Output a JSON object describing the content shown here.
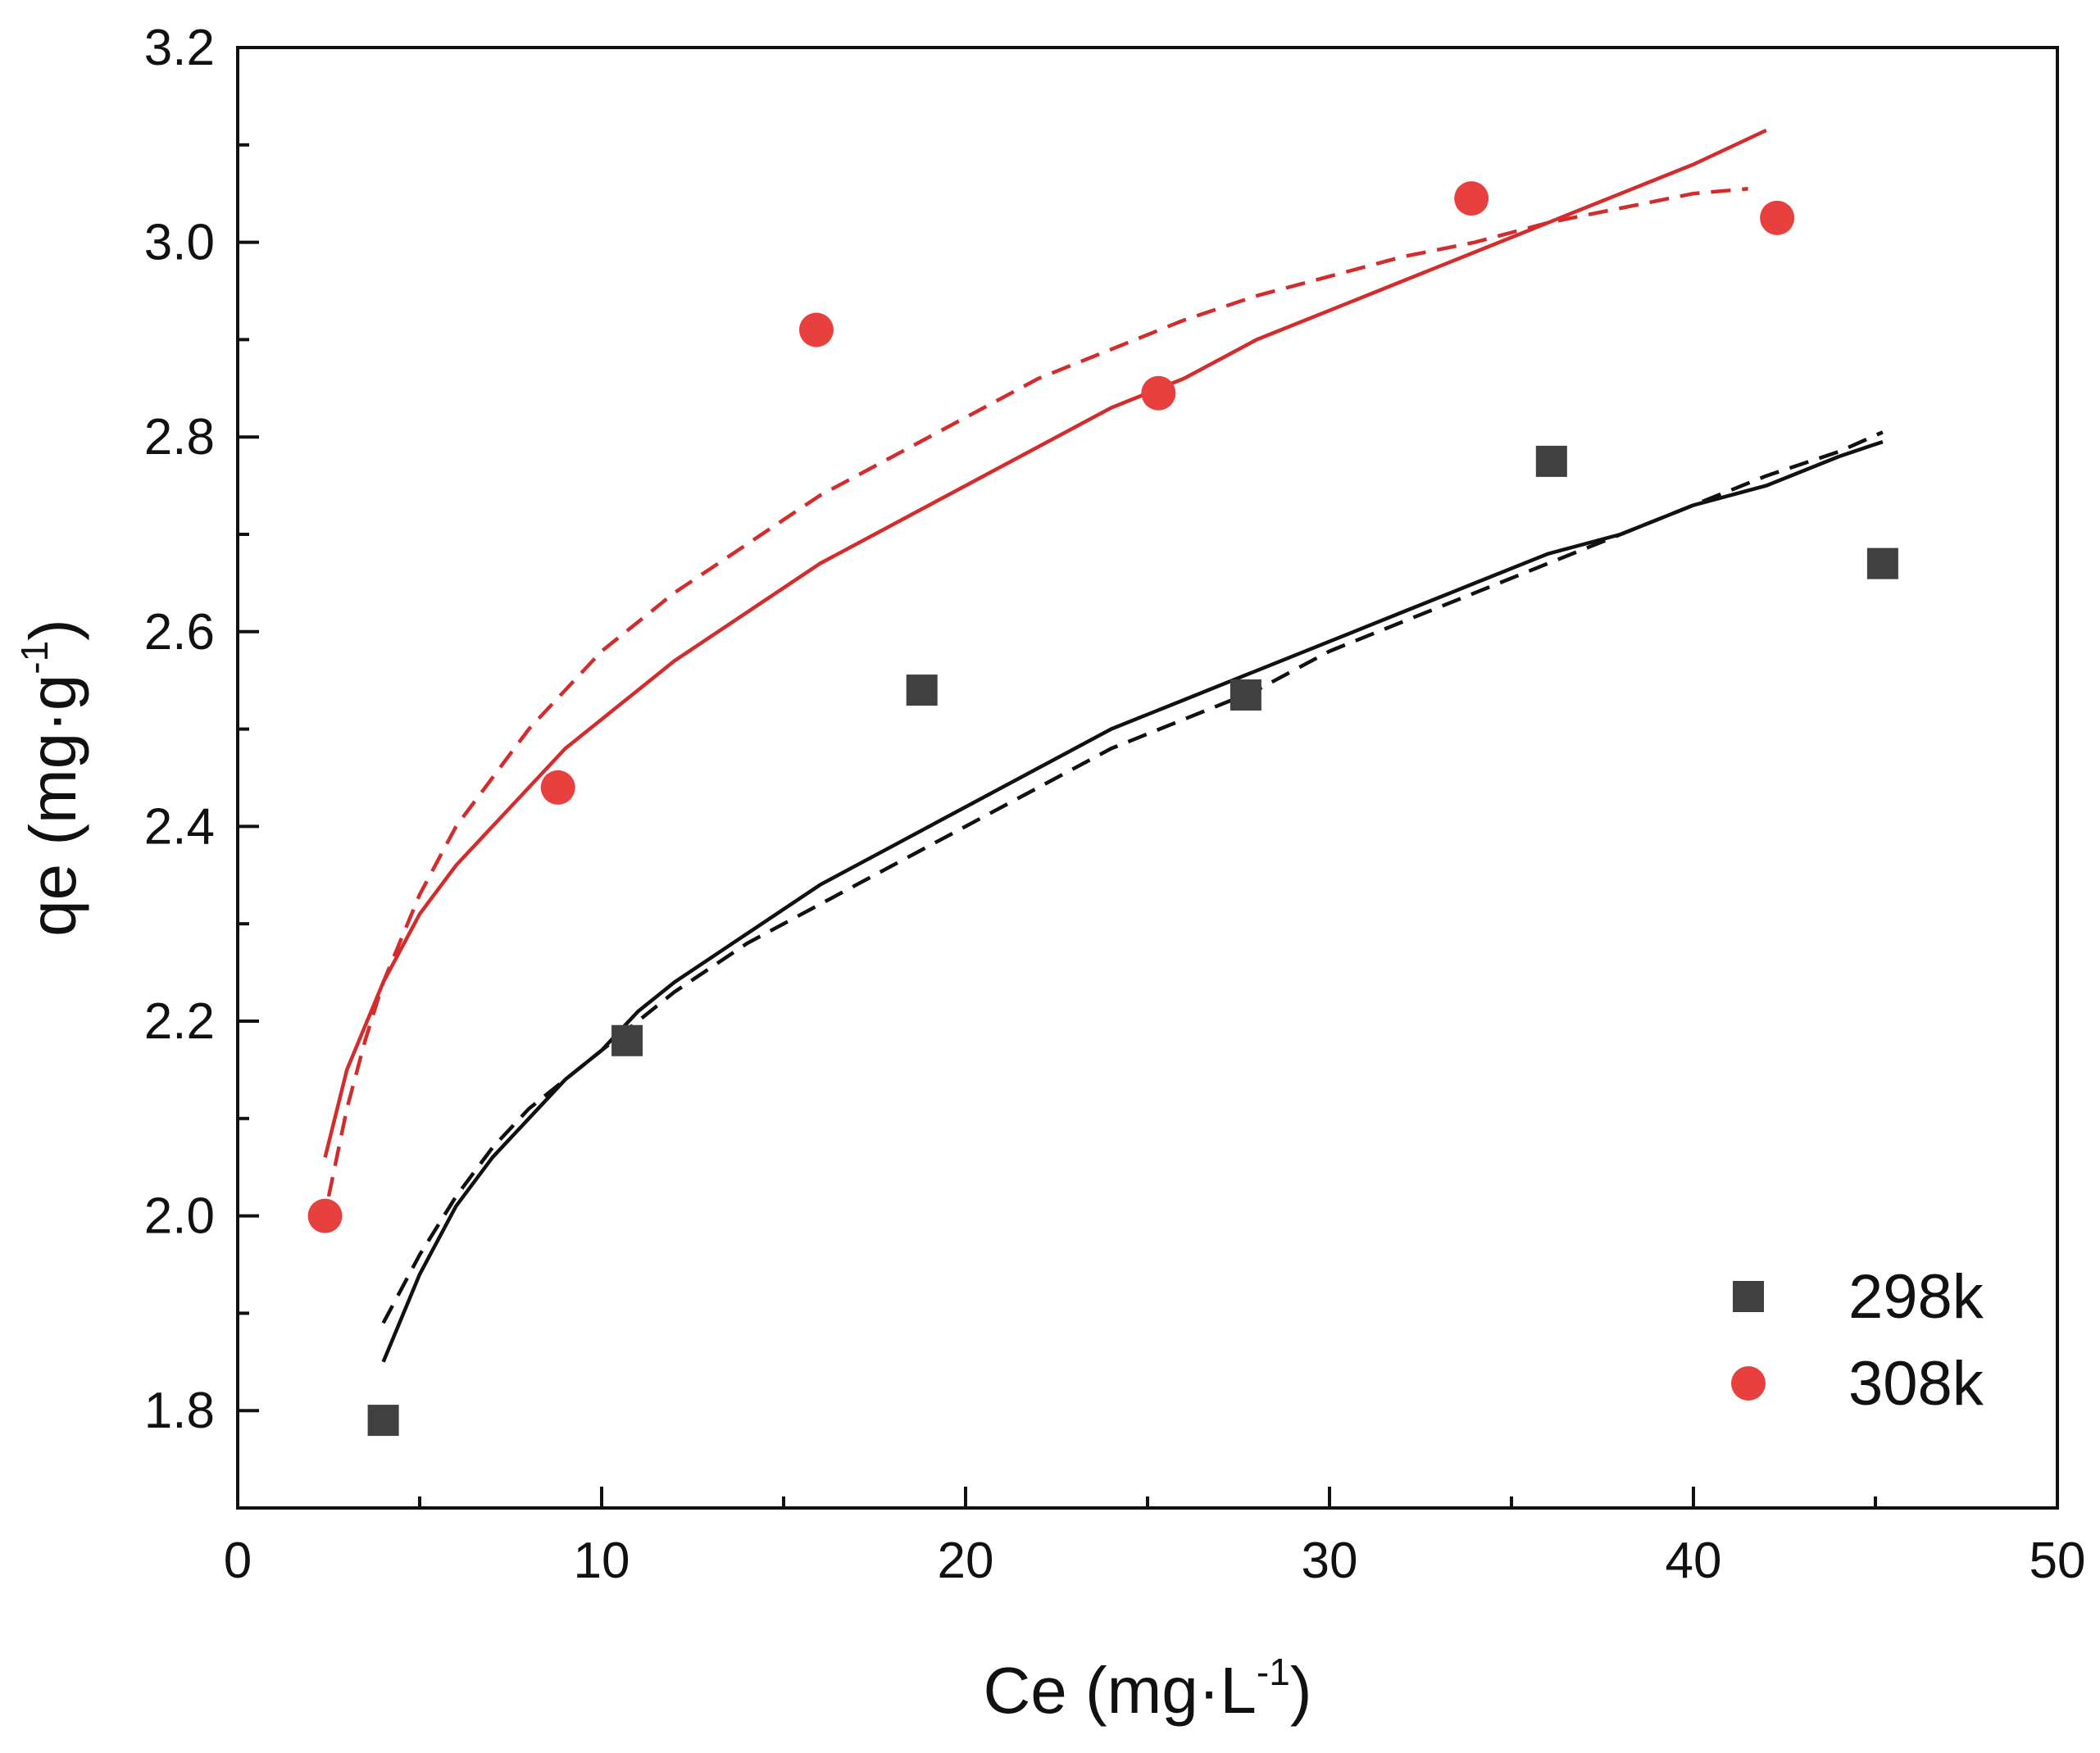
{
  "chart_data": {
    "type": "scatter",
    "title": "",
    "xlabel": "Ce (mg·L-1)",
    "xlabel_main": "Ce (mg·L",
    "xlabel_sup": "-1",
    "xlabel_close": ")",
    "ylabel": "qe (mg·g-1)",
    "ylabel_main": "qe (mg·g",
    "ylabel_sup": "-1",
    "ylabel_close": ")",
    "xlim": [
      0,
      50
    ],
    "ylim": [
      1.7,
      3.2
    ],
    "xticks": [
      0,
      10,
      20,
      30,
      40,
      50
    ],
    "xtick_labels": [
      "0",
      "10",
      "20",
      "30",
      "40",
      "50"
    ],
    "yticks": [
      1.8,
      2.0,
      2.2,
      2.4,
      2.6,
      2.8,
      3.0,
      3.2
    ],
    "ytick_labels": [
      "1.8",
      "2.0",
      "2.2",
      "2.4",
      "2.6",
      "2.8",
      "3.0",
      "3.2"
    ],
    "grid": false,
    "legend_position": "bottom-right",
    "series": [
      {
        "name": "298k",
        "marker": "square",
        "color": "#404040",
        "x": [
          4.0,
          10.7,
          18.8,
          27.7,
          36.1,
          45.2
        ],
        "y": [
          1.79,
          2.18,
          2.54,
          2.535,
          2.775,
          2.67
        ]
      },
      {
        "name": "308k",
        "marker": "circle",
        "color": "#e8403f",
        "x": [
          2.4,
          8.8,
          15.9,
          25.3,
          33.9,
          42.3
        ],
        "y": [
          2.0,
          2.44,
          2.91,
          2.845,
          3.045,
          3.025
        ]
      }
    ],
    "fit_curves": [
      {
        "name": "298k-fit-solid",
        "color": "#111111",
        "dash": false,
        "x": [
          4.0,
          5.0,
          6.0,
          7.0,
          8.0,
          9.0,
          10.0,
          11.0,
          12.0,
          14.0,
          16.0,
          18.0,
          20.0,
          22.0,
          24.0,
          26.0,
          28.0,
          30.0,
          32.0,
          34.0,
          36.0,
          38.0,
          40.0,
          42.0,
          44.0,
          45.2
        ],
        "y": [
          1.85,
          1.94,
          2.01,
          2.06,
          2.1,
          2.14,
          2.17,
          2.21,
          2.24,
          2.29,
          2.34,
          2.38,
          2.42,
          2.46,
          2.5,
          2.53,
          2.56,
          2.59,
          2.62,
          2.65,
          2.68,
          2.7,
          2.73,
          2.75,
          2.78,
          2.795
        ]
      },
      {
        "name": "298k-fit-dashed",
        "color": "#111111",
        "dash": true,
        "x": [
          4.0,
          5.0,
          6.0,
          7.0,
          8.0,
          9.0,
          10.0,
          11.0,
          12.0,
          14.0,
          16.0,
          18.0,
          20.0,
          22.0,
          24.0,
          26.0,
          28.0,
          30.0,
          32.0,
          34.0,
          36.0,
          38.0,
          40.0,
          42.0,
          44.0,
          45.2
        ],
        "y": [
          1.89,
          1.96,
          2.02,
          2.07,
          2.11,
          2.14,
          2.17,
          2.2,
          2.23,
          2.28,
          2.32,
          2.36,
          2.4,
          2.44,
          2.48,
          2.51,
          2.54,
          2.58,
          2.61,
          2.64,
          2.67,
          2.7,
          2.73,
          2.76,
          2.785,
          2.805
        ]
      },
      {
        "name": "308k-fit-solid",
        "color": "#d42c2c",
        "dash": false,
        "x": [
          2.4,
          3.0,
          4.0,
          5.0,
          6.0,
          7.0,
          8.0,
          9.0,
          10.0,
          12.0,
          14.0,
          16.0,
          18.0,
          20.0,
          22.0,
          24.0,
          26.0,
          28.0,
          30.0,
          32.0,
          34.0,
          36.0,
          38.0,
          40.0,
          42.0
        ],
        "y": [
          2.06,
          2.15,
          2.24,
          2.31,
          2.36,
          2.4,
          2.44,
          2.48,
          2.51,
          2.57,
          2.62,
          2.67,
          2.71,
          2.75,
          2.79,
          2.83,
          2.86,
          2.9,
          2.93,
          2.96,
          2.99,
          3.02,
          3.05,
          3.08,
          3.115
        ]
      },
      {
        "name": "308k-fit-dashed",
        "color": "#d42c2c",
        "dash": true,
        "x": [
          2.5,
          3.0,
          3.5,
          4.0,
          5.0,
          6.0,
          7.0,
          8.0,
          9.0,
          10.0,
          12.0,
          14.0,
          16.0,
          18.0,
          20.0,
          22.0,
          24.0,
          26.0,
          28.0,
          30.0,
          32.0,
          34.0,
          36.0,
          38.0,
          40.0,
          41.5
        ],
        "y": [
          2.02,
          2.11,
          2.18,
          2.24,
          2.33,
          2.4,
          2.45,
          2.5,
          2.54,
          2.58,
          2.64,
          2.69,
          2.74,
          2.78,
          2.82,
          2.86,
          2.89,
          2.92,
          2.945,
          2.965,
          2.985,
          3.0,
          3.02,
          3.035,
          3.05,
          3.055
        ]
      }
    ]
  }
}
